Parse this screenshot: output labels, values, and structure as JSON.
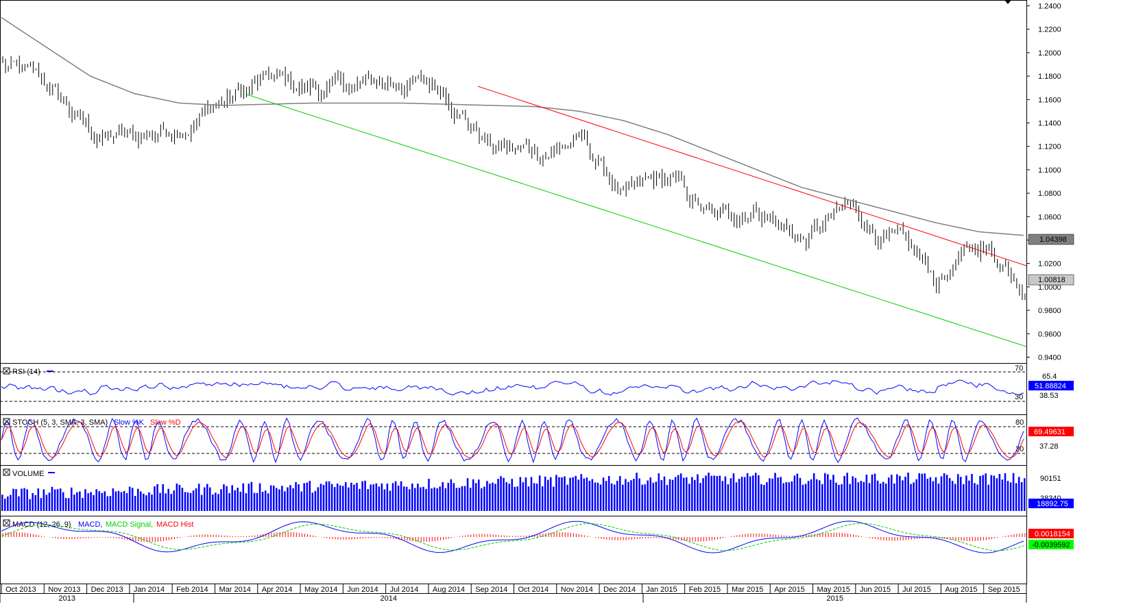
{
  "colors": {
    "price_bars": "#000000",
    "sma_line": "#7f7f7f",
    "upper_trendline": "#ff0000",
    "lower_trendline": "#00cc00",
    "rsi_line": "#0000ff",
    "stoch_k": "#0000ff",
    "stoch_d": "#ff0000",
    "volume": "#0000ff",
    "macd": "#0000ff",
    "macd_signal": "#00cc00",
    "macd_hist": "#ff0000",
    "tag_blue": "#0000ff",
    "tag_red": "#ff0000",
    "tag_green": "#00ff00",
    "tag_grey": "#c8c8c8",
    "tag_darkgrey": "#808080"
  },
  "price_panel": {
    "y_ticks": [
      "1.2400",
      "1.2200",
      "1.2000",
      "1.1800",
      "1.1600",
      "1.1400",
      "1.1200",
      "1.1000",
      "1.0800",
      "1.0600",
      "1.0400",
      "1.0200",
      "1.0000",
      "0.9800",
      "0.9600",
      "0.9400"
    ],
    "sma_value_tag": "1.04398",
    "last_price_tag": "1.00818"
  },
  "rsi_panel": {
    "title": "RSI (14)",
    "levels": [
      "70",
      "30"
    ],
    "axis_labels": [
      "65.4",
      "38.53"
    ],
    "value_tag": "51.88824"
  },
  "stoch_panel": {
    "title": "STOCH (5, 3, SMA, 3, SMA)",
    "k_label": "Slow %K",
    "d_label": "Slow %D",
    "levels": [
      "80",
      "20"
    ],
    "axis_labels": [
      "37.28"
    ],
    "value_tag": "69.49631"
  },
  "volume_panel": {
    "title": "VOLUME",
    "axis_labels": [
      "90151",
      "38340"
    ],
    "value_tag": "18892.75"
  },
  "macd_panel": {
    "title": "MACD (12, 26, 9)",
    "macd_label": "MACD,",
    "signal_label": "MACD Signal,",
    "hist_label": "MACD Hist",
    "value_tag_red": "0.0018154",
    "value_tag_green": "-0.0039592"
  },
  "x_axis": {
    "months": [
      "Oct 2013",
      "Nov 2013",
      "Dec 2013",
      "Jan 2014",
      "Feb 2014",
      "Mar 2014",
      "Apr 2014",
      "May 2014",
      "Jun 2014",
      "Jul 2014",
      "Aug 2014",
      "Sep 2014",
      "Oct 2014",
      "Nov 2014",
      "Dec 2014",
      "Jan 2015",
      "Feb 2015",
      "Mar 2015",
      "Apr 2015",
      "May 2015",
      "Jun 2015",
      "Jul 2015",
      "Aug 2015",
      "Sep 2015"
    ],
    "years": [
      "2013",
      "2014",
      "2015"
    ]
  },
  "chart_data": {
    "type": "line",
    "title": "",
    "xlabel": "",
    "ylabel": "",
    "ylim": [
      0.935,
      1.245
    ],
    "grid": false,
    "x": [
      "2013-10",
      "2013-11",
      "2013-12",
      "2014-01",
      "2014-02",
      "2014-03",
      "2014-04",
      "2014-05",
      "2014-06",
      "2014-07",
      "2014-08",
      "2014-09",
      "2014-10",
      "2014-11",
      "2014-12",
      "2015-01",
      "2015-02",
      "2015-03",
      "2015-04",
      "2015-05",
      "2015-06",
      "2015-07",
      "2015-08",
      "2015-09"
    ],
    "series": [
      {
        "name": "",
        "values": [
          1.19,
          1.17,
          1.13,
          1.125,
          1.14,
          1.16,
          1.175,
          1.168,
          1.17,
          1.175,
          1.168,
          1.12,
          1.115,
          1.125,
          1.075,
          1.09,
          1.055,
          1.07,
          1.04,
          1.065,
          1.04,
          1.005,
          1.035,
          1.008
        ]
      },
      {
        "name": "",
        "values": [
          1.23,
          1.205,
          1.18,
          1.165,
          1.157,
          1.155,
          1.156,
          1.157,
          1.157,
          1.157,
          1.156,
          1.155,
          1.154,
          1.15,
          1.142,
          1.13,
          1.115,
          1.1,
          1.085,
          1.075,
          1.065,
          1.055,
          1.047,
          1.044
        ]
      }
    ]
  }
}
